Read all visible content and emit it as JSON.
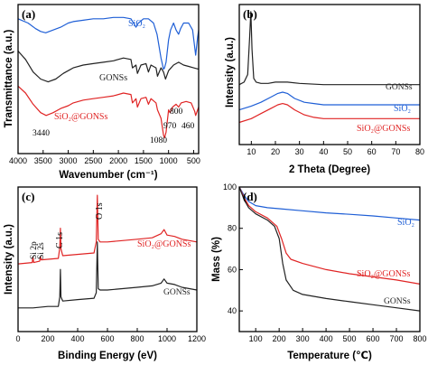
{
  "colors": {
    "sio2": "#1f5fd6",
    "gonss": "#222222",
    "composite": "#e02424"
  },
  "chart_data": [
    {
      "id": "a",
      "type": "line",
      "panel_label": "(a)",
      "xlabel": "Wavenumber (cm⁻¹)",
      "ylabel": "Transmittance (a.u.)",
      "xlim": [
        4000,
        400
      ],
      "xticks": [
        4000,
        3500,
        3000,
        2500,
        2000,
        1500,
        1000,
        500
      ],
      "series": [
        {
          "name": "SiO₂",
          "color": "sio2",
          "x": [
            4000,
            3800,
            3650,
            3550,
            3450,
            3300,
            3150,
            3000,
            2900,
            2700,
            2500,
            2300,
            2100,
            1900,
            1750,
            1650,
            1600,
            1500,
            1400,
            1300,
            1230,
            1150,
            1100,
            1080,
            1050,
            1000,
            960,
            900,
            850,
            800,
            760,
            700,
            600,
            520,
            460,
            420,
            400
          ],
          "y": [
            0.93,
            0.9,
            0.86,
            0.84,
            0.83,
            0.85,
            0.87,
            0.9,
            0.91,
            0.92,
            0.93,
            0.93,
            0.94,
            0.94,
            0.93,
            0.87,
            0.9,
            0.93,
            0.93,
            0.9,
            0.82,
            0.65,
            0.57,
            0.58,
            0.62,
            0.78,
            0.85,
            0.9,
            0.85,
            0.82,
            0.86,
            0.9,
            0.9,
            0.85,
            0.67,
            0.8,
            0.85
          ]
        },
        {
          "name": "GONSs",
          "color": "gonss",
          "x": [
            4000,
            3850,
            3700,
            3550,
            3400,
            3250,
            3100,
            3000,
            2900,
            2700,
            2500,
            2300,
            2100,
            1900,
            1750,
            1720,
            1650,
            1620,
            1550,
            1450,
            1400,
            1350,
            1250,
            1220,
            1150,
            1100,
            1060,
            1000,
            900,
            800,
            700,
            600,
            500,
            400
          ],
          "y": [
            0.7,
            0.64,
            0.55,
            0.5,
            0.48,
            0.5,
            0.54,
            0.56,
            0.58,
            0.6,
            0.61,
            0.62,
            0.63,
            0.65,
            0.64,
            0.58,
            0.6,
            0.54,
            0.6,
            0.61,
            0.55,
            0.6,
            0.58,
            0.52,
            0.58,
            0.55,
            0.5,
            0.56,
            0.6,
            0.62,
            0.6,
            0.59,
            0.58,
            0.57
          ]
        },
        {
          "name": "SiO₂@GONSs",
          "color": "composite",
          "x": [
            4000,
            3850,
            3700,
            3550,
            3440,
            3300,
            3150,
            3000,
            2900,
            2700,
            2500,
            2300,
            2100,
            1900,
            1750,
            1720,
            1650,
            1620,
            1550,
            1450,
            1400,
            1350,
            1250,
            1220,
            1150,
            1100,
            1080,
            1050,
            1000,
            970,
            920,
            850,
            800,
            750,
            650,
            550,
            480,
            460,
            420,
            400
          ],
          "y": [
            0.45,
            0.4,
            0.32,
            0.26,
            0.24,
            0.26,
            0.29,
            0.31,
            0.33,
            0.35,
            0.36,
            0.37,
            0.38,
            0.4,
            0.39,
            0.33,
            0.36,
            0.3,
            0.36,
            0.37,
            0.32,
            0.36,
            0.33,
            0.28,
            0.22,
            0.1,
            0.08,
            0.12,
            0.28,
            0.26,
            0.3,
            0.32,
            0.3,
            0.33,
            0.34,
            0.33,
            0.27,
            0.24,
            0.28,
            0.3
          ]
        }
      ],
      "annotations": [
        "3440",
        "1080",
        "970",
        "800",
        "460"
      ]
    },
    {
      "id": "b",
      "type": "line",
      "panel_label": "(b)",
      "xlabel": "2 Theta (Degree)",
      "ylabel": "Intensity (a.u.)",
      "xlim": [
        5,
        80
      ],
      "xticks": [
        10,
        20,
        30,
        40,
        50,
        60,
        70,
        80
      ],
      "series": [
        {
          "name": "GONSs",
          "color": "gonss",
          "x": [
            5,
            7,
            8.5,
            9.3,
            9.8,
            10.3,
            11,
            12,
            14,
            17,
            20,
            25,
            30,
            40,
            50,
            60,
            70,
            80
          ],
          "y": [
            0.42,
            0.44,
            0.5,
            0.8,
            1.0,
            0.7,
            0.47,
            0.44,
            0.43,
            0.43,
            0.44,
            0.44,
            0.43,
            0.42,
            0.42,
            0.42,
            0.42,
            0.42
          ]
        },
        {
          "name": "SiO₂",
          "color": "sio2",
          "x": [
            5,
            10,
            14,
            18,
            21,
            23,
            25,
            28,
            32,
            36,
            40,
            50,
            60,
            70,
            80
          ],
          "y": [
            0.22,
            0.25,
            0.28,
            0.32,
            0.35,
            0.36,
            0.35,
            0.31,
            0.28,
            0.27,
            0.26,
            0.26,
            0.26,
            0.26,
            0.26
          ]
        },
        {
          "name": "SiO₂@GONSs",
          "color": "composite",
          "x": [
            5,
            10,
            14,
            18,
            21,
            23,
            25,
            28,
            32,
            36,
            40,
            50,
            60,
            70,
            80
          ],
          "y": [
            0.12,
            0.15,
            0.19,
            0.23,
            0.26,
            0.27,
            0.26,
            0.22,
            0.18,
            0.16,
            0.15,
            0.15,
            0.15,
            0.15,
            0.15
          ]
        }
      ]
    },
    {
      "id": "c",
      "type": "line",
      "panel_label": "(c)",
      "xlabel": "Binding Energy (eV)",
      "ylabel": "Intensity (a.u.)",
      "xlim": [
        0,
        1200
      ],
      "xticks": [
        0,
        200,
        400,
        600,
        800,
        1000,
        1200
      ],
      "series": [
        {
          "name": "SiO₂@GONSs",
          "color": "composite",
          "x": [
            0,
            95,
            100,
            105,
            145,
            150,
            155,
            270,
            280,
            284,
            288,
            300,
            510,
            525,
            532,
            538,
            550,
            600,
            700,
            800,
            900,
            960,
            980,
            1000,
            1050,
            1100,
            1150,
            1200
          ],
          "y": [
            0.44,
            0.45,
            0.49,
            0.45,
            0.46,
            0.49,
            0.47,
            0.48,
            0.56,
            0.7,
            0.55,
            0.5,
            0.52,
            0.6,
            0.94,
            0.62,
            0.6,
            0.6,
            0.61,
            0.62,
            0.63,
            0.66,
            0.69,
            0.65,
            0.64,
            0.62,
            0.61,
            0.6
          ]
        },
        {
          "name": "GONSs",
          "color": "gonss",
          "x": [
            0,
            100,
            200,
            270,
            280,
            284,
            288,
            300,
            400,
            510,
            525,
            532,
            538,
            550,
            600,
            700,
            800,
            900,
            960,
            980,
            1000,
            1050,
            1100,
            1150,
            1200
          ],
          "y": [
            0.12,
            0.12,
            0.13,
            0.13,
            0.2,
            0.4,
            0.2,
            0.17,
            0.18,
            0.19,
            0.23,
            0.6,
            0.26,
            0.25,
            0.25,
            0.26,
            0.27,
            0.28,
            0.3,
            0.33,
            0.3,
            0.29,
            0.27,
            0.26,
            0.25
          ]
        }
      ],
      "annotations": [
        "Si 2p",
        "Si 2s",
        "C 1s",
        "O 1s"
      ]
    },
    {
      "id": "d",
      "type": "line",
      "panel_label": "(d)",
      "xlabel": "Temperature (℃)",
      "ylabel": "Mass (%)",
      "xlim": [
        30,
        800
      ],
      "ylim": [
        30,
        100
      ],
      "xticks": [
        100,
        200,
        300,
        400,
        500,
        600,
        700,
        800
      ],
      "yticks": [
        40,
        60,
        80,
        100
      ],
      "series": [
        {
          "name": "SiO₂",
          "color": "sio2",
          "x": [
            30,
            50,
            70,
            100,
            150,
            200,
            300,
            400,
            500,
            600,
            700,
            800
          ],
          "y": [
            100,
            96,
            93,
            91,
            90,
            89.5,
            88.5,
            87.5,
            86.8,
            86,
            85,
            84
          ]
        },
        {
          "name": "SiO₂@GONSs",
          "color": "composite",
          "x": [
            30,
            50,
            70,
            100,
            150,
            190,
            210,
            230,
            250,
            300,
            400,
            500,
            600,
            700,
            800
          ],
          "y": [
            100,
            95,
            91,
            88,
            85,
            81,
            75,
            68,
            65,
            63,
            60,
            58,
            56.5,
            55,
            53
          ]
        },
        {
          "name": "GONSs",
          "color": "gonss",
          "x": [
            30,
            50,
            70,
            100,
            150,
            180,
            200,
            215,
            230,
            260,
            300,
            400,
            500,
            600,
            700,
            800
          ],
          "y": [
            100,
            94,
            90,
            87,
            84,
            81,
            75,
            63,
            55,
            50,
            48,
            46,
            44.5,
            43,
            41.5,
            40
          ]
        }
      ]
    }
  ]
}
